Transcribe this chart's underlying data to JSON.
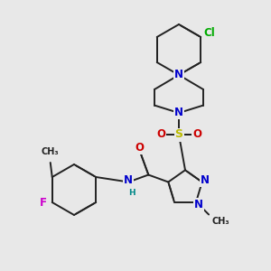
{
  "bg_color": "#e8e8e8",
  "bond_color": "#222222",
  "bond_width": 1.4,
  "dbo": 0.012,
  "atom_colors": {
    "N": "#0000cc",
    "O": "#cc0000",
    "S": "#bbbb00",
    "F": "#cc00cc",
    "Cl": "#00aa00",
    "H": "#008888",
    "C": "#222222"
  },
  "fs": 8.5,
  "fs_small": 7.0
}
